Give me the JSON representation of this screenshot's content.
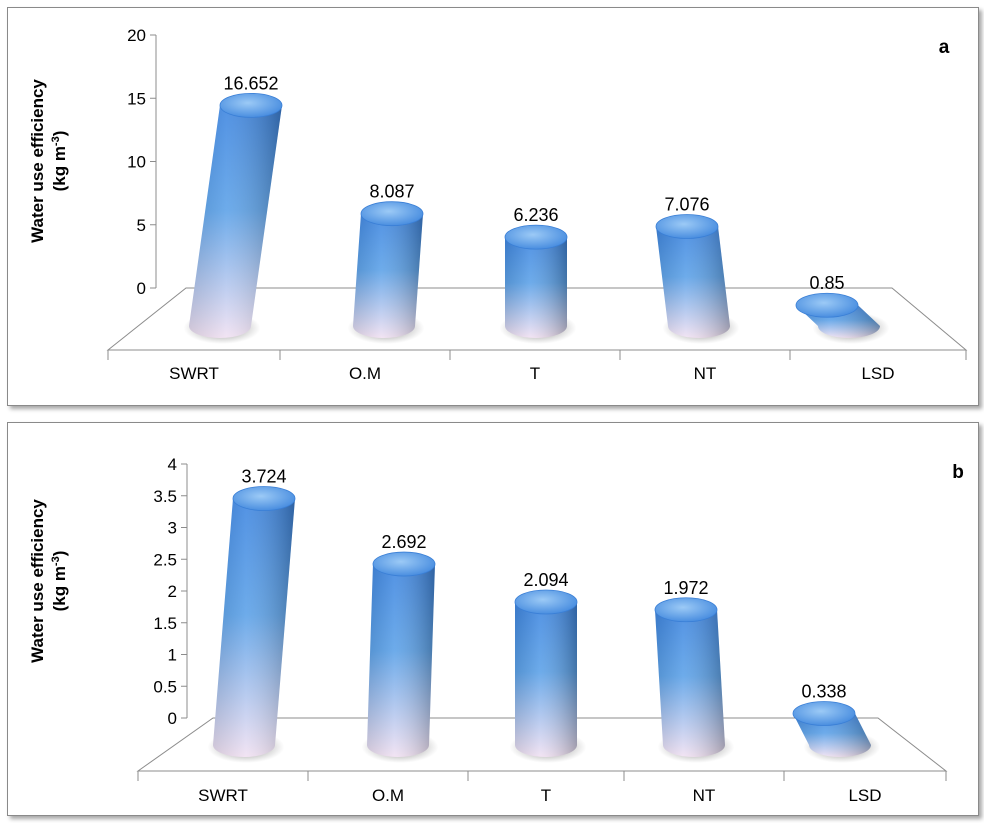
{
  "chart_data": [
    {
      "type": "bar",
      "panel_label": "a",
      "ylabel_line1": "Water use efficiency",
      "ylabel_line2_base": "(kg m",
      "ylabel_line2_sup": "-3",
      "ylabel_line2_end": ")",
      "categories": [
        "SWRT",
        "O.M",
        "T",
        "NT",
        "LSD"
      ],
      "values": [
        16.652,
        8.087,
        6.236,
        7.076,
        0.85
      ],
      "value_labels": [
        "16.652",
        "8.087",
        "6.236",
        "7.076",
        "0.85"
      ],
      "yticks": [
        "0",
        "5",
        "10",
        "15",
        "20"
      ],
      "ylim": [
        0,
        20
      ],
      "bar_color": "#4a8de0",
      "bar_base_color": "#f1e1f2"
    },
    {
      "type": "bar",
      "panel_label": "b",
      "ylabel_line1": "Water use efficiency",
      "ylabel_line2_base": "(kg m",
      "ylabel_line2_sup": "-3",
      "ylabel_line2_end": ")",
      "categories": [
        "SWRT",
        "O.M",
        "T",
        "NT",
        "LSD"
      ],
      "values": [
        3.724,
        2.692,
        2.094,
        1.972,
        0.338
      ],
      "value_labels": [
        "3.724",
        "2.692",
        "2.094",
        "1.972",
        "0.338"
      ],
      "yticks": [
        "0",
        "0.5",
        "1",
        "1.5",
        "2",
        "2.5",
        "3",
        "3.5",
        "4"
      ],
      "ylim": [
        0,
        4
      ],
      "bar_color": "#4a8de0",
      "bar_base_color": "#f1e1f2"
    }
  ]
}
